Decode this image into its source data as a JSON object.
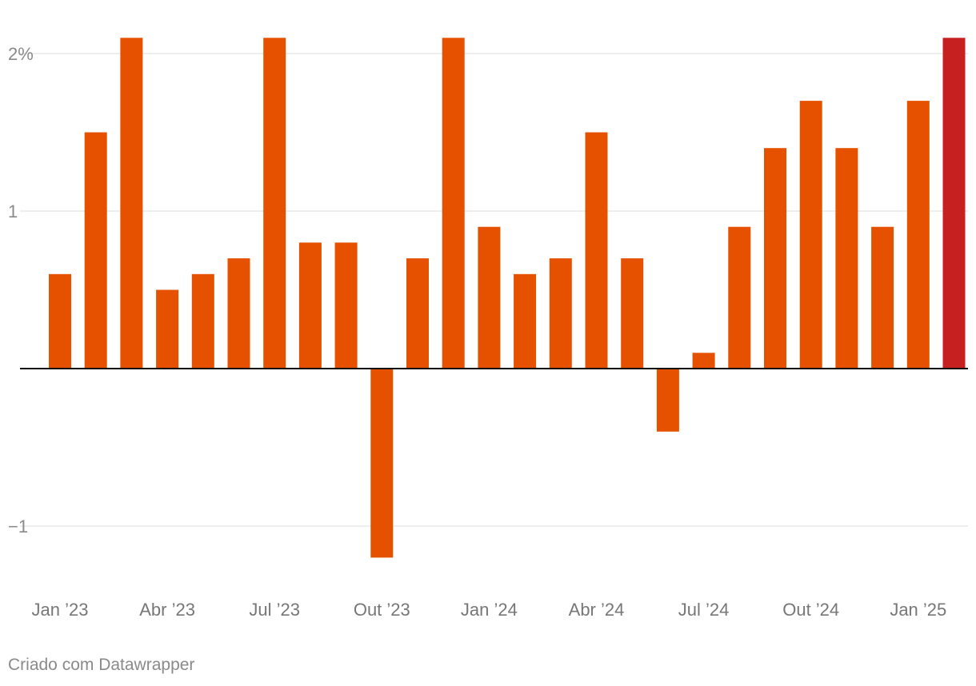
{
  "chart_data": {
    "type": "bar",
    "categories": [
      "Jan 2023",
      "Feb 2023",
      "Mar 2023",
      "Apr 2023",
      "May 2023",
      "Jun 2023",
      "Jul 2023",
      "Aug 2023",
      "Sep 2023",
      "Oct 2023",
      "Nov 2023",
      "Dec 2023",
      "Jan 2024",
      "Feb 2024",
      "Mar 2024",
      "Apr 2024",
      "May 2024",
      "Jun 2024",
      "Jul 2024",
      "Aug 2024",
      "Sep 2024",
      "Oct 2024",
      "Nov 2024",
      "Dec 2024",
      "Jan 2025",
      "Feb 2025"
    ],
    "values": [
      0.6,
      1.5,
      2.1,
      0.5,
      0.6,
      0.7,
      2.1,
      0.8,
      0.8,
      -1.2,
      0.7,
      2.1,
      0.9,
      0.6,
      0.7,
      1.5,
      0.7,
      -0.4,
      0.1,
      0.9,
      1.4,
      1.7,
      1.4,
      0.9,
      1.7,
      2.1
    ],
    "y_unit": "%",
    "ylim": [
      -1.2,
      2.1
    ],
    "y_ticks": [
      {
        "value": 2,
        "label": "2%"
      },
      {
        "value": 1,
        "label": "1"
      },
      {
        "value": -1,
        "label": "−1"
      }
    ],
    "x_tick_labels": [
      {
        "index": 0,
        "label": "Jan ’23"
      },
      {
        "index": 3,
        "label": "Abr ’23"
      },
      {
        "index": 6,
        "label": "Jul ’23"
      },
      {
        "index": 9,
        "label": "Out ’23"
      },
      {
        "index": 12,
        "label": "Jan ’24"
      },
      {
        "index": 15,
        "label": "Abr ’24"
      },
      {
        "index": 18,
        "label": "Jul ’24"
      },
      {
        "index": 21,
        "label": "Out ’24"
      },
      {
        "index": 24,
        "label": "Jan ’25"
      }
    ],
    "grid": true,
    "bar_color": "#e65100",
    "highlight_index": 25,
    "highlight_color": "#c62020"
  },
  "footer": {
    "credit": "Criado com Datawrapper"
  }
}
